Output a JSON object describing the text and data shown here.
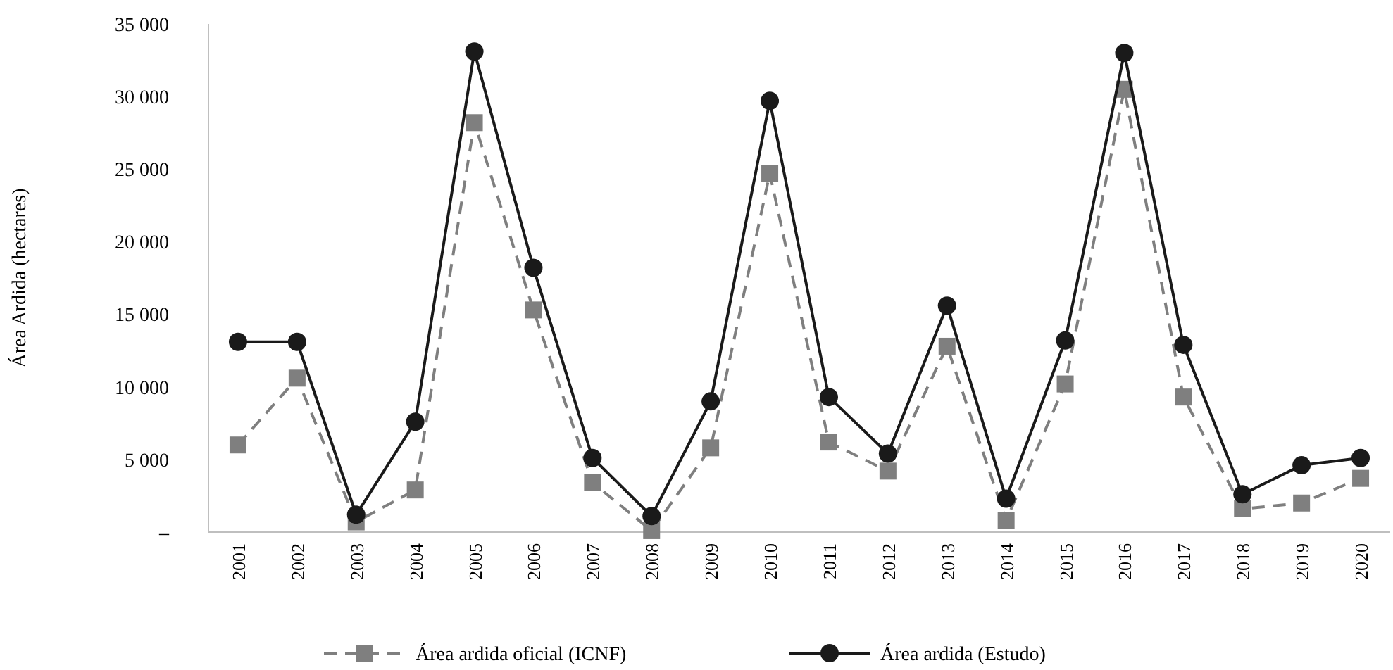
{
  "chart_data": {
    "type": "line",
    "ylabel": "Área Ardida (hectares)",
    "categories": [
      "2001",
      "2002",
      "2003",
      "2004",
      "2005",
      "2006",
      "2007",
      "2008",
      "2009",
      "2010",
      "2011",
      "2012",
      "2013",
      "2014",
      "2015",
      "2016",
      "2017",
      "2018",
      "2019",
      "2020"
    ],
    "series": [
      {
        "name": "Área ardida oficial (ICNF)",
        "color": "#7f7f7f",
        "marker": "square",
        "line_style": "dashed",
        "values": [
          6000,
          10600,
          700,
          2900,
          28200,
          15300,
          3400,
          100,
          5800,
          24700,
          6200,
          4200,
          12800,
          800,
          10200,
          30500,
          9300,
          1600,
          2000,
          3700
        ]
      },
      {
        "name": "Área ardida (Estudo)",
        "color": "#1a1a1a",
        "marker": "circle",
        "line_style": "solid",
        "values": [
          13100,
          13100,
          1200,
          7600,
          33100,
          18200,
          5100,
          1100,
          9000,
          29700,
          9300,
          5400,
          15600,
          2300,
          13200,
          33000,
          12900,
          2600,
          4600,
          5100
        ]
      }
    ],
    "ylim": [
      0,
      35000
    ],
    "yticks": [
      {
        "value": 0,
        "label": "–"
      },
      {
        "value": 5000,
        "label": "5 000"
      },
      {
        "value": 10000,
        "label": "10 000"
      },
      {
        "value": 15000,
        "label": "15 000"
      },
      {
        "value": 20000,
        "label": "20 000"
      },
      {
        "value": 25000,
        "label": "25 000"
      },
      {
        "value": 30000,
        "label": "30 000"
      },
      {
        "value": 35000,
        "label": "35 000"
      }
    ],
    "grid": false,
    "legend": "bottom"
  }
}
